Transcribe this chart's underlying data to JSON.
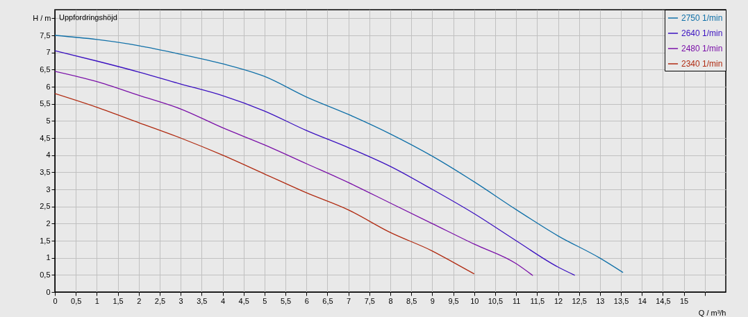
{
  "chart_data": {
    "type": "line",
    "title": "Uppfordringshöjd",
    "xlabel": "Q / m³/h",
    "ylabel": "H / m",
    "series": [
      {
        "name": "2750 1/min",
        "color": "#1070a8",
        "x": [
          0,
          1,
          2,
          3,
          4,
          5,
          6,
          7,
          8,
          9,
          10,
          11,
          12,
          13,
          13.55
        ],
        "values": [
          7.5,
          7.38,
          7.2,
          6.95,
          6.67,
          6.3,
          5.7,
          5.19,
          4.62,
          3.97,
          3.22,
          2.41,
          1.64,
          0.99,
          0.57
        ]
      },
      {
        "name": "2640 1/min",
        "color": "#3a10c0",
        "x": [
          0,
          1,
          2,
          3,
          4,
          5,
          6,
          7,
          8,
          9,
          10,
          11,
          12,
          12.4
        ],
        "values": [
          7.05,
          6.75,
          6.43,
          6.08,
          5.74,
          5.29,
          4.72,
          4.22,
          3.67,
          3.0,
          2.29,
          1.5,
          0.73,
          0.49
        ]
      },
      {
        "name": "2480 1/min",
        "color": "#7a10a8",
        "x": [
          0,
          1,
          2,
          3,
          4,
          5,
          6,
          7,
          8,
          9,
          10,
          11,
          11.4
        ],
        "values": [
          6.45,
          6.15,
          5.75,
          5.35,
          4.8,
          4.3,
          3.75,
          3.2,
          2.6,
          2.0,
          1.4,
          0.83,
          0.48
        ]
      },
      {
        "name": "2340 1/min",
        "color": "#b02a10",
        "x": [
          0,
          1,
          2,
          3,
          4,
          5,
          6,
          7,
          8,
          9,
          9.5,
          10
        ],
        "values": [
          5.8,
          5.4,
          4.95,
          4.5,
          4.0,
          3.45,
          2.9,
          2.4,
          1.74,
          1.2,
          0.87,
          0.53
        ]
      }
    ],
    "xlim": [
      0,
      16
    ],
    "xticks": [
      0,
      {
        "value": 0.5,
        "label": "0,5"
      },
      1,
      {
        "value": 1.5,
        "label": "1,5"
      },
      2,
      {
        "value": 2.5,
        "label": "2,5"
      },
      3,
      {
        "value": 3.5,
        "label": "3,5"
      },
      4,
      {
        "value": 4.5,
        "label": "4,5"
      },
      5,
      {
        "value": 5.5,
        "label": "5,5"
      },
      6,
      {
        "value": 6.5,
        "label": "6,5"
      },
      7,
      {
        "value": 7.5,
        "label": "7,5"
      },
      8,
      {
        "value": 8.5,
        "label": "8,5"
      },
      9,
      {
        "value": 9.5,
        "label": "9,5"
      },
      10,
      {
        "value": 10.5,
        "label": "10,5"
      },
      11,
      {
        "value": 11.5,
        "label": "11,5"
      },
      12,
      {
        "value": 12.5,
        "label": "12,5"
      },
      13,
      {
        "value": 13.5,
        "label": "13,5"
      },
      14,
      {
        "value": 14.5,
        "label": "14,5"
      },
      15,
      {
        "value": 15.5,
        "label": null
      }
    ],
    "ylim": [
      0,
      8.25
    ],
    "yticks": [
      0,
      {
        "value": 0.5,
        "label": "0,5"
      },
      1,
      {
        "value": 1.5,
        "label": "1,5"
      },
      2,
      {
        "value": 2.5,
        "label": "2,5"
      },
      3,
      {
        "value": 3.5,
        "label": "3,5"
      },
      4,
      {
        "value": 4.5,
        "label": "4,5"
      },
      5,
      {
        "value": 5.5,
        "label": "5,5"
      },
      6,
      {
        "value": 6.5,
        "label": "6,5"
      },
      7,
      {
        "value": 7.5,
        "label": "7,5"
      },
      {
        "value": 8,
        "label": null
      }
    ],
    "grid": true,
    "legend": "top right",
    "marker": "none",
    "line_style": "solid"
  }
}
